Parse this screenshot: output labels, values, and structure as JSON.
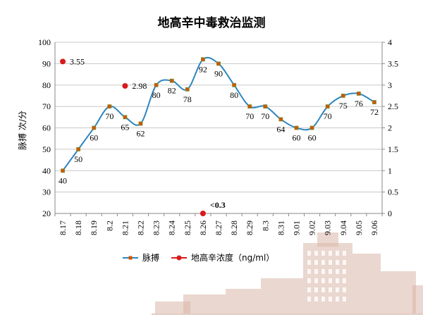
{
  "chart_data": {
    "type": "line",
    "title": "地高辛中毒救治监测",
    "ylabel": "脉搏  次/分",
    "xlabel": "",
    "categories": [
      "8.17",
      "8.18",
      "8.19",
      "8.2",
      "8.21",
      "8.22",
      "8.23",
      "8.24",
      "8.25",
      "8.26",
      "8.27",
      "8.28",
      "8.29",
      "8.3",
      "8.31",
      "9.01",
      "9.02",
      "9.03",
      "9.04",
      "9.05",
      "9.06"
    ],
    "ylim": [
      20,
      100
    ],
    "yticks": [
      20,
      30,
      40,
      50,
      60,
      70,
      80,
      90,
      100
    ],
    "y2lim": [
      0,
      4
    ],
    "y2ticks": [
      "0",
      "0.5",
      "1",
      "1.5",
      "2",
      "2.5",
      "3",
      "3.5",
      "4"
    ],
    "grid": true,
    "legend_position": "bottom",
    "series": [
      {
        "name": "脉搏",
        "axis": "left",
        "style": "smooth-line-with-square-markers",
        "color": "#2e86c1",
        "marker_color": "#d35400",
        "values": [
          40,
          50,
          60,
          70,
          65,
          62,
          80,
          82,
          78,
          92,
          90,
          80,
          70,
          70,
          64,
          60,
          60,
          70,
          75,
          76,
          72
        ],
        "labels": [
          "40",
          "50",
          "60",
          "70",
          "65",
          "62",
          "80",
          "82",
          "78",
          "92",
          "90",
          "80",
          "70",
          "70",
          "64",
          "60",
          "60",
          "70",
          "75",
          "76",
          "72"
        ]
      },
      {
        "name": "地高辛浓度（ng/ml）",
        "axis": "right",
        "style": "points-only",
        "color": "#d91a1a",
        "points": [
          {
            "category": "8.17",
            "value": 3.55,
            "label": "3.55"
          },
          {
            "category": "8.21",
            "value": 2.98,
            "label": "2.98"
          },
          {
            "category": "8.26",
            "value": 0,
            "label": "<0.3"
          }
        ]
      }
    ]
  }
}
